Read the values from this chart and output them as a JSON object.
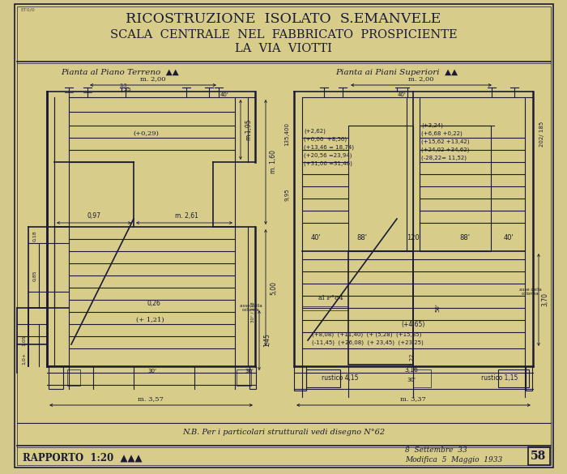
{
  "bg_color": "#d4c98a",
  "paper_color": "#cfc27a",
  "line_color": "#1a1a35",
  "title_line1": "RICOSTRUZIONE  ISOLATO  S.EMANVELE",
  "title_line2": "SCALA  CENTRALE  NEL  FABBRICATO  PROSPICIENTE",
  "title_line3": "LA  VIA  VIOTTI",
  "subtitle_left": "Pianta al Piano Terreno  ▲▲",
  "subtitle_right": "Pianta ai Piani Superiori  ▲▲",
  "note": "N.B. Per i particolari strutturali vedi disegno N°62",
  "rapporto": "RAPPORTO  1:20  ▲▲▲",
  "date1": "8  Settembre  33",
  "date2": "Modifica  5  Maggio  1933",
  "sheet": "58",
  "fig_width": 7.0,
  "fig_height": 5.85
}
